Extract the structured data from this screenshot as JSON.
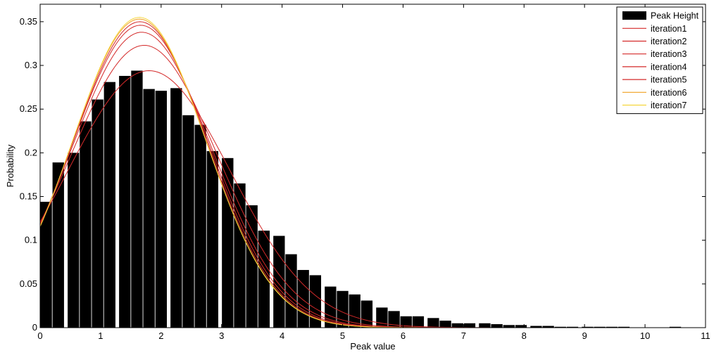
{
  "chart_data": {
    "type": "bar",
    "xlabel": "Peak value",
    "ylabel": "Probability",
    "xlim": [
      0,
      11
    ],
    "ylim": [
      0,
      0.37
    ],
    "xticks": [
      0,
      1,
      2,
      3,
      4,
      5,
      6,
      7,
      8,
      9,
      10,
      11
    ],
    "xtick_labels": [
      "0",
      "1",
      "2",
      "3",
      "4",
      "5",
      "6",
      "7",
      "8",
      "9",
      "10",
      "11"
    ],
    "yticks": [
      0,
      0.05,
      0.1,
      0.15,
      0.2,
      0.25,
      0.3,
      0.35
    ],
    "ytick_labels": [
      "0",
      "0.05",
      "0.1",
      "0.15",
      "0.2",
      "0.25",
      "0.3",
      "0.35"
    ],
    "grid": false,
    "legend_position": "top-right",
    "bar_series": {
      "name": "Peak Height",
      "color": "#000000",
      "bar_width": 0.19,
      "x": [
        0.1,
        0.3,
        0.55,
        0.75,
        0.95,
        1.15,
        1.4,
        1.6,
        1.8,
        2.0,
        2.25,
        2.45,
        2.65,
        2.85,
        3.1,
        3.3,
        3.5,
        3.7,
        3.95,
        4.15,
        4.35,
        4.55,
        4.8,
        5.0,
        5.2,
        5.4,
        5.65,
        5.85,
        6.05,
        6.25,
        6.5,
        6.7,
        6.9,
        7.1,
        7.35,
        7.55,
        7.75,
        7.95,
        8.2,
        8.4,
        8.6,
        8.8,
        9.05,
        9.25,
        9.45,
        9.65,
        9.9,
        10.1,
        10.3,
        10.5,
        10.75,
        10.95
      ],
      "values": [
        0.144,
        0.189,
        0.2,
        0.236,
        0.261,
        0.281,
        0.288,
        0.294,
        0.273,
        0.271,
        0.274,
        0.243,
        0.232,
        0.202,
        0.194,
        0.165,
        0.14,
        0.111,
        0.105,
        0.084,
        0.066,
        0.06,
        0.047,
        0.042,
        0.038,
        0.031,
        0.023,
        0.019,
        0.013,
        0.013,
        0.011,
        0.008,
        0.005,
        0.005,
        0.005,
        0.004,
        0.003,
        0.003,
        0.002,
        0.002,
        0.001,
        0.001,
        0.001,
        0.001,
        0.001,
        0.001,
        0.0,
        0.0,
        0.0,
        0.001,
        0.0,
        0.0
      ]
    },
    "line_series": [
      {
        "name": "iteration1",
        "color": "#d42a2a",
        "peak_x": 1.8,
        "peak_y": 0.294,
        "sigma": 1.35
      },
      {
        "name": "iteration2",
        "color": "#d42a2a",
        "peak_x": 1.72,
        "peak_y": 0.323,
        "sigma": 1.22
      },
      {
        "name": "iteration3",
        "color": "#d42a2a",
        "peak_x": 1.68,
        "peak_y": 0.338,
        "sigma": 1.16
      },
      {
        "name": "iteration4",
        "color": "#d42a2a",
        "peak_x": 1.66,
        "peak_y": 0.346,
        "sigma": 1.13
      },
      {
        "name": "iteration5",
        "color": "#d42a2a",
        "peak_x": 1.65,
        "peak_y": 0.35,
        "sigma": 1.11
      },
      {
        "name": "iteration6",
        "color": "#f0a020",
        "peak_x": 1.64,
        "peak_y": 0.353,
        "sigma": 1.1
      },
      {
        "name": "iteration7",
        "color": "#f5d53c",
        "peak_x": 1.64,
        "peak_y": 0.355,
        "sigma": 1.095
      }
    ]
  }
}
